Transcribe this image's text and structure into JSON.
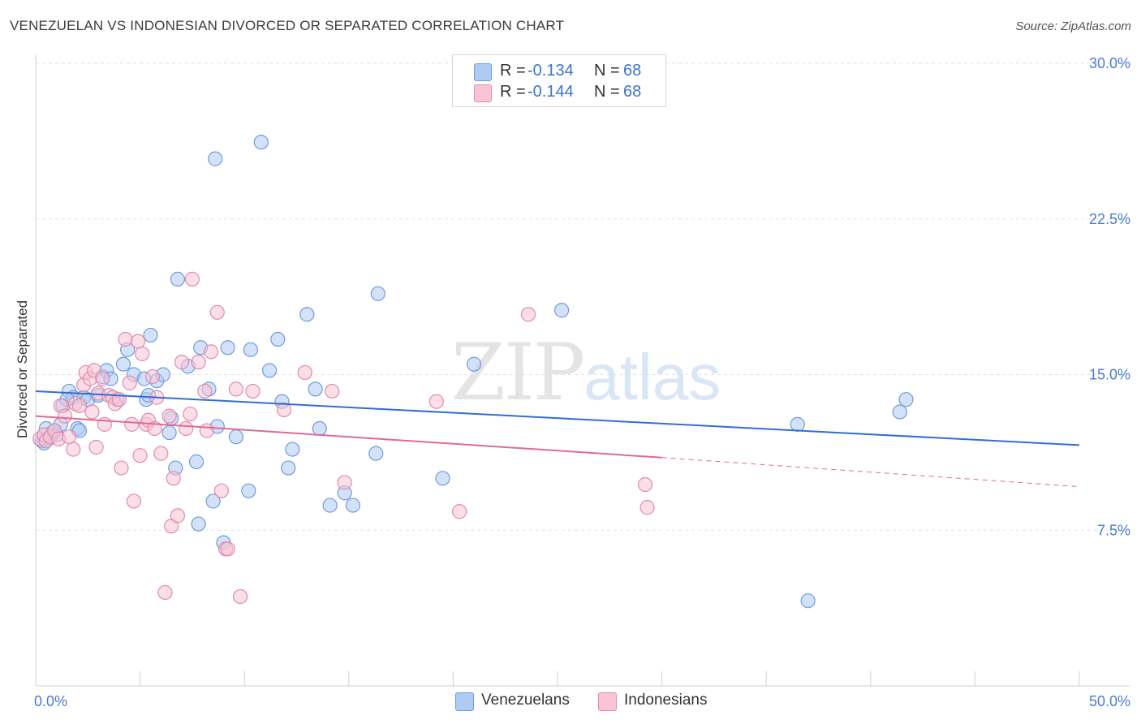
{
  "title": "VENEZUELAN VS INDONESIAN DIVORCED OR SEPARATED CORRELATION CHART",
  "source": "Source: ZipAtlas.com",
  "watermark": {
    "zip": "ZIP",
    "atlas": "atlas"
  },
  "legend": {
    "r_label": "R =",
    "n_label": "N =",
    "rows": [
      {
        "series": "Venezuelans",
        "r": "-0.134",
        "n": "68",
        "color": "#aecbf2",
        "border": "#6f9be0"
      },
      {
        "series": "Indonesians",
        "r": "-0.144",
        "n": "68",
        "color": "#f8c4d6",
        "border": "#e38aaa"
      }
    ]
  },
  "bottom_legend": [
    {
      "label": "Venezuelans",
      "color": "#aecbf2",
      "border": "#6f9be0"
    },
    {
      "label": "Indonesians",
      "color": "#f8c4d6",
      "border": "#e38aaa"
    }
  ],
  "chart_data": {
    "type": "scatter",
    "title": "VENEZUELAN VS INDONESIAN DIVORCED OR SEPARATED CORRELATION CHART",
    "xlabel": "",
    "ylabel": "Divorced or Separated",
    "xlim": [
      0,
      50
    ],
    "ylim": [
      0,
      30
    ],
    "x_tick_labels": [
      "0.0%",
      "50.0%"
    ],
    "y_ticks": [
      7.5,
      15.0,
      22.5,
      30.0
    ],
    "y_tick_labels": [
      "7.5%",
      "15.0%",
      "22.5%",
      "30.0%"
    ],
    "grid": "horizontal dashed",
    "legend_position": "top-center",
    "series": [
      {
        "name": "Venezuelans",
        "color": "#6f9be0",
        "fill": "#aecbf2",
        "trend": {
          "x0": 0,
          "y0": 14.2,
          "x1": 50,
          "y1": 11.6,
          "color": "#2f6fd0"
        },
        "points": [
          [
            0.3,
            11.8
          ],
          [
            0.5,
            12.4
          ],
          [
            0.6,
            11.9
          ],
          [
            0.8,
            12.2
          ],
          [
            1.0,
            12.1
          ],
          [
            1.2,
            12.6
          ],
          [
            1.3,
            13.5
          ],
          [
            1.6,
            14.2
          ],
          [
            1.8,
            13.9
          ],
          [
            2.0,
            12.4
          ],
          [
            2.1,
            12.3
          ],
          [
            2.3,
            13.9
          ],
          [
            2.5,
            13.8
          ],
          [
            3.0,
            14.0
          ],
          [
            3.2,
            14.9
          ],
          [
            3.4,
            15.2
          ],
          [
            3.6,
            14.8
          ],
          [
            3.9,
            13.8
          ],
          [
            4.2,
            15.5
          ],
          [
            4.4,
            16.2
          ],
          [
            4.7,
            15.0
          ],
          [
            5.2,
            14.8
          ],
          [
            5.3,
            13.8
          ],
          [
            5.4,
            14.0
          ],
          [
            5.5,
            16.9
          ],
          [
            5.8,
            14.7
          ],
          [
            6.1,
            15.0
          ],
          [
            6.4,
            12.2
          ],
          [
            6.5,
            12.9
          ],
          [
            6.7,
            10.5
          ],
          [
            6.8,
            19.6
          ],
          [
            7.3,
            15.4
          ],
          [
            7.7,
            10.8
          ],
          [
            7.8,
            7.8
          ],
          [
            7.9,
            16.3
          ],
          [
            8.3,
            14.3
          ],
          [
            8.5,
            8.9
          ],
          [
            8.6,
            25.4
          ],
          [
            8.7,
            12.5
          ],
          [
            9.0,
            6.9
          ],
          [
            9.2,
            16.3
          ],
          [
            9.6,
            12.0
          ],
          [
            10.2,
            9.4
          ],
          [
            10.3,
            16.2
          ],
          [
            10.8,
            26.2
          ],
          [
            11.2,
            15.2
          ],
          [
            11.6,
            16.7
          ],
          [
            11.8,
            13.7
          ],
          [
            12.1,
            10.5
          ],
          [
            12.3,
            11.4
          ],
          [
            13.0,
            17.9
          ],
          [
            13.4,
            14.3
          ],
          [
            13.6,
            12.4
          ],
          [
            14.1,
            8.7
          ],
          [
            14.8,
            9.3
          ],
          [
            15.2,
            8.7
          ],
          [
            16.3,
            11.2
          ],
          [
            16.4,
            18.9
          ],
          [
            19.5,
            10.0
          ],
          [
            21.0,
            15.5
          ],
          [
            25.2,
            18.1
          ],
          [
            36.5,
            12.6
          ],
          [
            37.0,
            4.1
          ],
          [
            41.4,
            13.2
          ],
          [
            41.7,
            13.8
          ],
          [
            0.4,
            11.7
          ],
          [
            0.9,
            12.3
          ],
          [
            1.5,
            13.8
          ]
        ]
      },
      {
        "name": "Indonesians",
        "color": "#e38aaa",
        "fill": "#f8c4d6",
        "trend": {
          "x0": 0,
          "y0": 13.0,
          "x1": 30,
          "y1": 11.0,
          "color": "#e06a92",
          "dash_to": {
            "x": 50,
            "y": 9.6
          }
        },
        "points": [
          [
            0.2,
            11.9
          ],
          [
            0.4,
            12.1
          ],
          [
            0.5,
            11.8
          ],
          [
            0.7,
            12.0
          ],
          [
            0.9,
            12.3
          ],
          [
            1.1,
            11.9
          ],
          [
            1.2,
            13.5
          ],
          [
            1.4,
            13.0
          ],
          [
            1.6,
            12.0
          ],
          [
            1.8,
            11.4
          ],
          [
            1.9,
            13.6
          ],
          [
            2.1,
            13.5
          ],
          [
            2.3,
            14.5
          ],
          [
            2.4,
            15.1
          ],
          [
            2.6,
            14.8
          ],
          [
            2.7,
            13.2
          ],
          [
            2.8,
            15.2
          ],
          [
            2.9,
            11.5
          ],
          [
            3.0,
            14.1
          ],
          [
            3.2,
            14.8
          ],
          [
            3.3,
            12.6
          ],
          [
            3.5,
            14.0
          ],
          [
            3.7,
            13.9
          ],
          [
            3.8,
            13.6
          ],
          [
            4.0,
            13.8
          ],
          [
            4.1,
            10.5
          ],
          [
            4.3,
            16.7
          ],
          [
            4.5,
            14.6
          ],
          [
            4.6,
            12.6
          ],
          [
            4.7,
            8.9
          ],
          [
            4.9,
            16.6
          ],
          [
            5.0,
            11.1
          ],
          [
            5.1,
            16.0
          ],
          [
            5.3,
            12.6
          ],
          [
            5.4,
            12.8
          ],
          [
            5.6,
            14.9
          ],
          [
            5.7,
            12.4
          ],
          [
            5.8,
            13.9
          ],
          [
            6.0,
            11.2
          ],
          [
            6.2,
            4.5
          ],
          [
            6.4,
            13.0
          ],
          [
            6.5,
            7.7
          ],
          [
            6.6,
            10.0
          ],
          [
            6.8,
            8.2
          ],
          [
            7.0,
            15.6
          ],
          [
            7.2,
            12.4
          ],
          [
            7.4,
            13.1
          ],
          [
            7.5,
            19.6
          ],
          [
            7.8,
            15.6
          ],
          [
            8.1,
            14.2
          ],
          [
            8.2,
            12.3
          ],
          [
            8.4,
            16.1
          ],
          [
            8.7,
            18.0
          ],
          [
            8.9,
            9.4
          ],
          [
            9.1,
            6.6
          ],
          [
            9.2,
            6.6
          ],
          [
            9.8,
            4.3
          ],
          [
            9.6,
            14.3
          ],
          [
            10.4,
            14.2
          ],
          [
            11.9,
            13.3
          ],
          [
            12.9,
            15.1
          ],
          [
            14.2,
            14.2
          ],
          [
            14.8,
            9.8
          ],
          [
            19.2,
            13.7
          ],
          [
            20.3,
            8.4
          ],
          [
            23.6,
            17.9
          ],
          [
            29.2,
            9.7
          ],
          [
            29.3,
            8.6
          ]
        ]
      }
    ]
  }
}
